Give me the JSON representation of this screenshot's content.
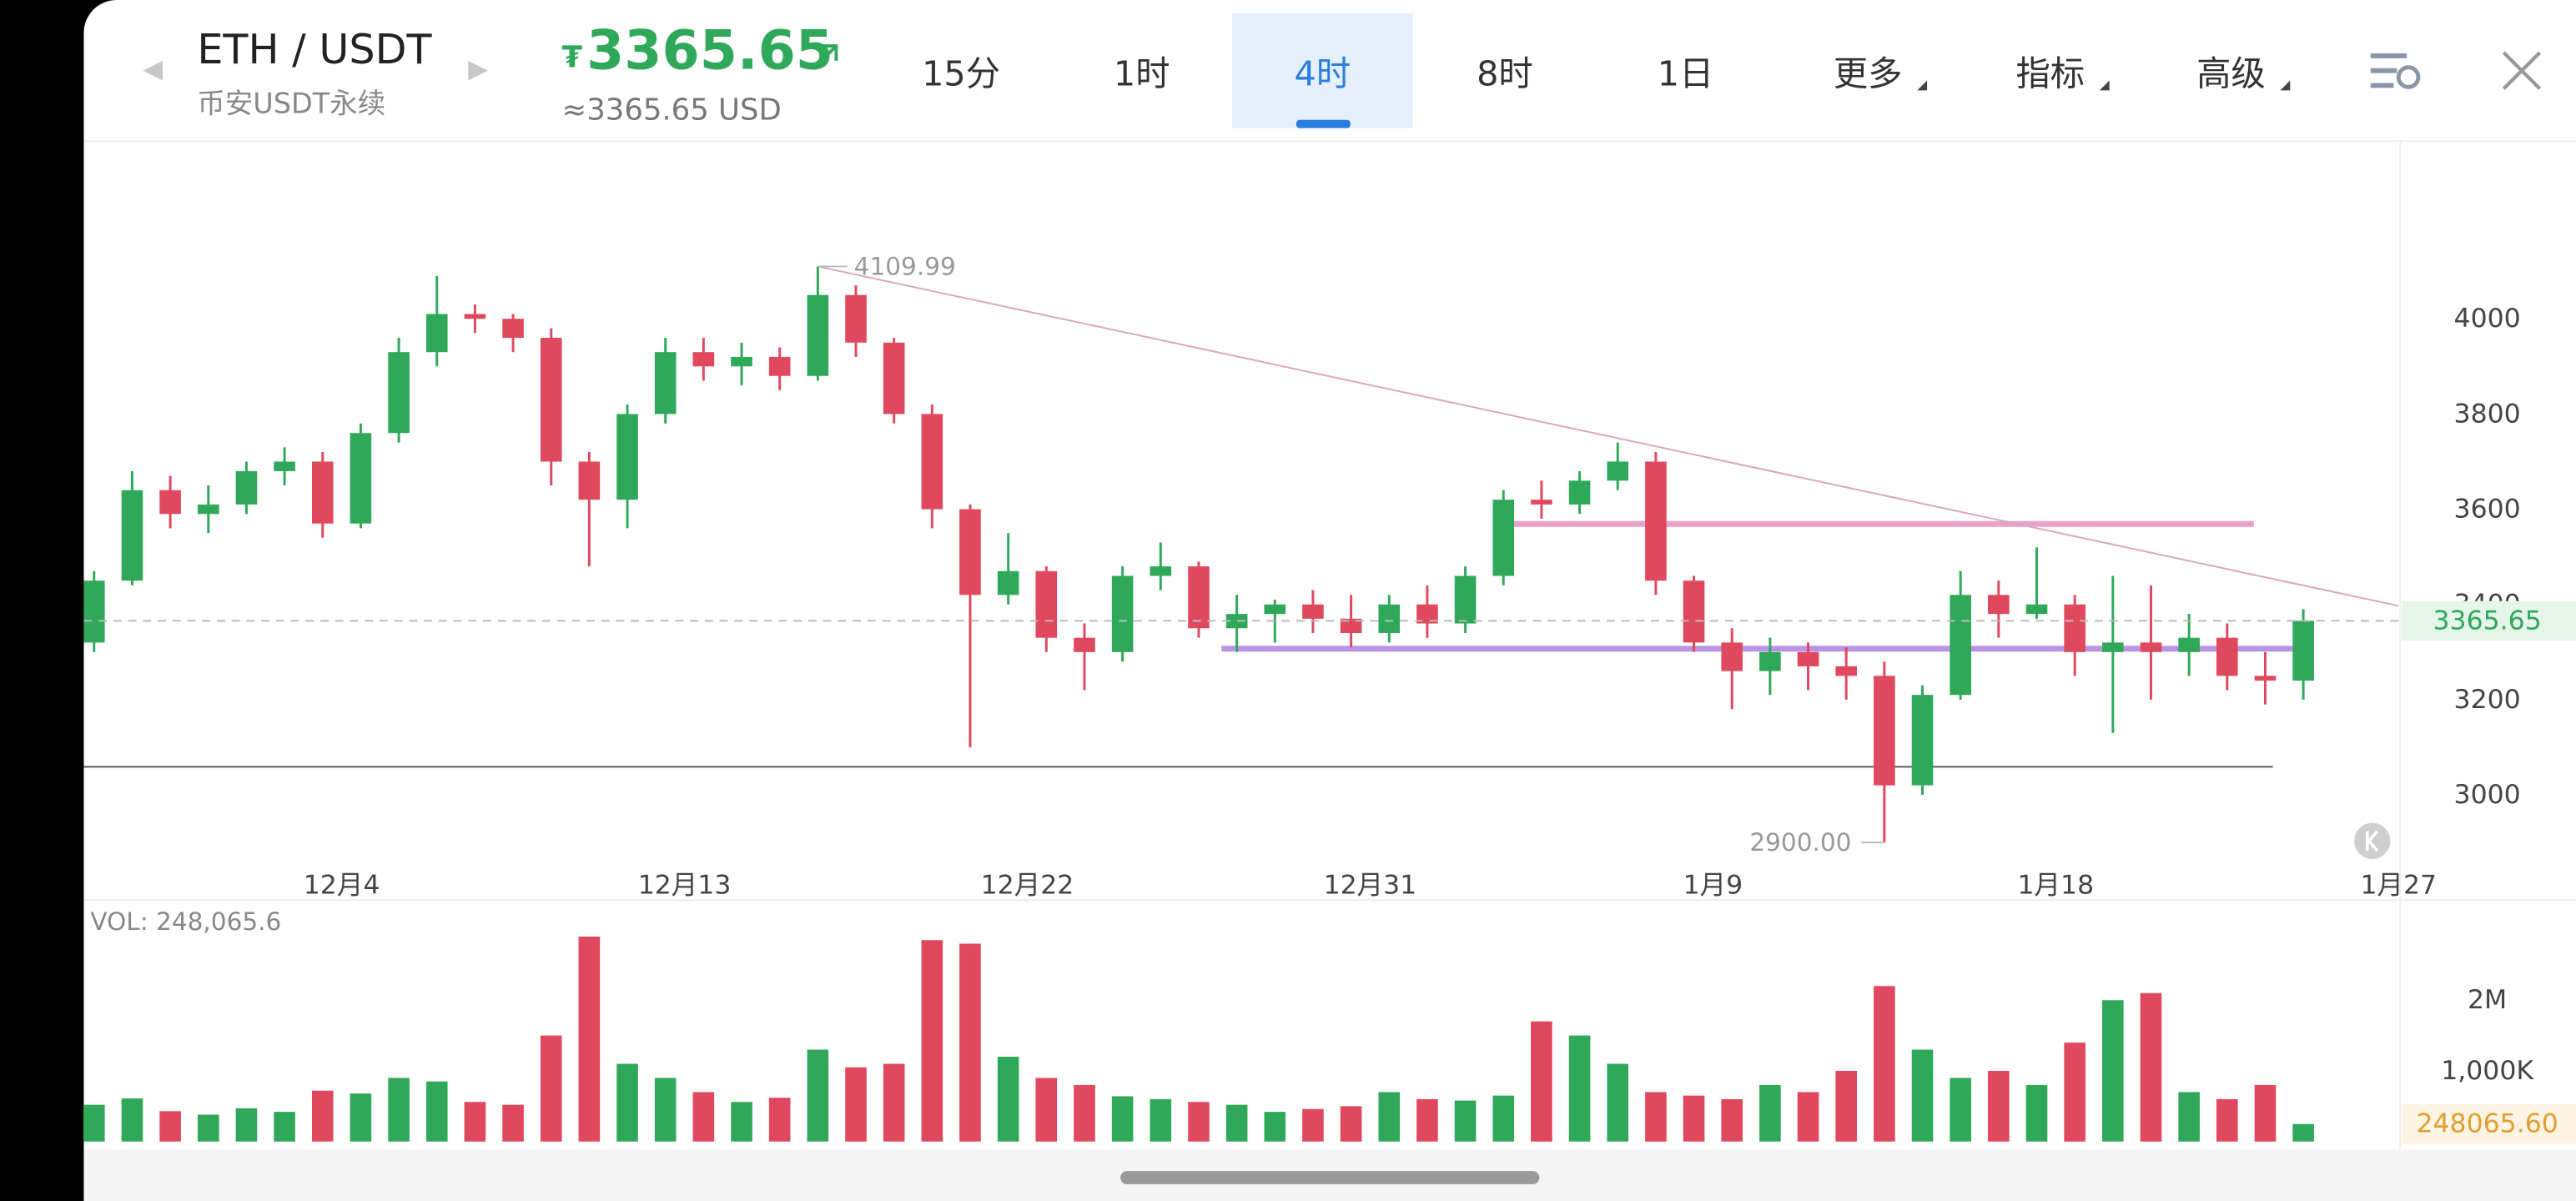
{
  "header": {
    "pair": "ETH / USDT",
    "market": "币安USDT永续",
    "currency_symbol": "₮",
    "price": "3365.65",
    "usd_price": "≈3365.65 USD",
    "tabs": [
      "15分",
      "1时",
      "4时",
      "8时",
      "1日",
      "更多",
      "指标",
      "高级"
    ],
    "active_tab": 2
  },
  "chart_data": {
    "type": "candlestick",
    "x": [
      -2.5,
      -1.5,
      -0.5,
      0.5,
      1.5,
      2.5,
      3.5,
      4.5,
      5.5,
      6.5,
      7.5,
      8.5,
      9.5,
      10.5,
      11.5,
      12.5,
      13.5,
      14.5,
      15.5,
      16.5,
      17.5,
      18.5,
      19.5,
      20.5,
      21.5,
      22.5,
      23.5,
      24.5,
      25.5,
      26.5,
      27.5,
      28.5,
      29.5,
      30.5,
      31.5,
      32.5,
      33.5,
      34.5,
      35.5,
      36.5,
      37.5,
      38.5,
      39.5,
      40.5,
      41.5,
      42.5,
      43.5,
      44.5,
      45.5,
      46.5,
      47.5,
      48.5,
      49.5,
      50.5,
      51.5,
      52.5,
      53.5,
      54.5,
      55.5
    ],
    "open": [
      3320,
      3450,
      3640,
      3590,
      3610,
      3680,
      3700,
      3570,
      3760,
      3930,
      4010,
      4000,
      3960,
      3700,
      3620,
      3800,
      3930,
      3900,
      3920,
      3880,
      4050,
      3950,
      3800,
      3600,
      3420,
      3470,
      3330,
      3300,
      3460,
      3480,
      3350,
      3380,
      3400,
      3370,
      3340,
      3400,
      3360,
      3460,
      3620,
      3610,
      3660,
      3700,
      3450,
      3320,
      3260,
      3300,
      3270,
      3250,
      3020,
      3210,
      3420,
      3380,
      3400,
      3300,
      3320,
      3300,
      3330,
      3250,
      3240
    ],
    "high": [
      3470,
      3680,
      3670,
      3650,
      3700,
      3730,
      3720,
      3780,
      3960,
      4090,
      4030,
      4010,
      3980,
      3720,
      3820,
      3960,
      3960,
      3950,
      3940,
      4109.99,
      4070,
      3960,
      3820,
      3610,
      3550,
      3480,
      3360,
      3480,
      3530,
      3490,
      3420,
      3410,
      3430,
      3420,
      3420,
      3440,
      3480,
      3640,
      3660,
      3680,
      3740,
      3720,
      3460,
      3350,
      3330,
      3320,
      3310,
      3280,
      3230,
      3470,
      3450,
      3520,
      3420,
      3460,
      3440,
      3380,
      3360,
      3300,
      3390
    ],
    "low": [
      3300,
      3440,
      3560,
      3550,
      3590,
      3650,
      3540,
      3560,
      3740,
      3900,
      3970,
      3930,
      3650,
      3480,
      3560,
      3780,
      3870,
      3860,
      3850,
      3870,
      3920,
      3780,
      3560,
      3100,
      3400,
      3300,
      3220,
      3280,
      3430,
      3330,
      3300,
      3320,
      3340,
      3310,
      3320,
      3330,
      3340,
      3440,
      3580,
      3590,
      3640,
      3420,
      3300,
      3180,
      3210,
      3220,
      3200,
      2900,
      3000,
      3200,
      3330,
      3370,
      3250,
      3130,
      3200,
      3250,
      3220,
      3190,
      3200
    ],
    "close": [
      3450,
      3640,
      3590,
      3610,
      3680,
      3700,
      3570,
      3760,
      3930,
      4010,
      4000,
      3960,
      3700,
      3620,
      3800,
      3930,
      3900,
      3920,
      3880,
      4050,
      3950,
      3800,
      3600,
      3420,
      3470,
      3330,
      3300,
      3460,
      3480,
      3350,
      3380,
      3400,
      3370,
      3340,
      3400,
      3360,
      3460,
      3620,
      3610,
      3660,
      3700,
      3450,
      3320,
      3260,
      3300,
      3270,
      3250,
      3020,
      3210,
      3420,
      3380,
      3400,
      3300,
      3320,
      3300,
      3330,
      3250,
      3240,
      3365.65
    ],
    "up_color": "#2fa85a",
    "down_color": "#e0485e",
    "xlim": [
      -2.77,
      58
    ],
    "xticks": [
      {
        "value": 4,
        "label": "12月4"
      },
      {
        "value": 13,
        "label": "12月13"
      },
      {
        "value": 22,
        "label": "12月22"
      },
      {
        "value": 31,
        "label": "12月31"
      },
      {
        "value": 40,
        "label": "1月9"
      },
      {
        "value": 49,
        "label": "1月18"
      },
      {
        "value": 58,
        "label": "1月27"
      }
    ],
    "ylim": [
      2848,
      4366
    ],
    "yticks": [
      3000,
      3200,
      3400,
      3600,
      3800,
      4000
    ],
    "grid": false,
    "last_price": 3365.65,
    "last_price_label": "3365.65",
    "annotations": [
      {
        "text": "4109.99",
        "x": 16.5,
        "y": 4109.99
      },
      {
        "text": "2900.00",
        "x": 44.5,
        "y": 2900
      }
    ],
    "levels": [
      {
        "y": 3569,
        "x": [
          34.7,
          54.2
        ],
        "color": "#eba0cb"
      },
      {
        "y": 3307,
        "x": [
          27.1,
          55.6
        ],
        "color": "#b993e3"
      },
      {
        "y": 3059,
        "x": [
          -2.77,
          54.7
        ],
        "color": "#6f6f6f"
      }
    ],
    "trendline": {
      "x": [
        16.5,
        58
      ],
      "y": [
        4109.99,
        3397
      ],
      "color": "#d9a7ba"
    },
    "volume": {
      "label": "VOL: 248,065.6",
      "last_label": "248065.60",
      "values": [
        520000,
        610000,
        430000,
        380000,
        470000,
        420000,
        720000,
        680000,
        900000,
        850000,
        560000,
        520000,
        1500000,
        2900000,
        1100000,
        900000,
        700000,
        560000,
        620000,
        1300000,
        1050000,
        1100000,
        2850000,
        2800000,
        1200000,
        900000,
        800000,
        640000,
        600000,
        560000,
        520000,
        420000,
        460000,
        500000,
        700000,
        600000,
        580000,
        650000,
        1700000,
        1500000,
        1100000,
        700000,
        650000,
        600000,
        800000,
        700000,
        1000000,
        2200000,
        1300000,
        900000,
        1000000,
        800000,
        1400000,
        2000000,
        2100000,
        700000,
        600000,
        800000,
        248065.6
      ],
      "ylim": [
        0,
        3370000
      ],
      "yticks": [
        {
          "value": 1000000,
          "label": "1,000K"
        },
        {
          "value": 2000000,
          "label": "2M"
        }
      ]
    }
  }
}
